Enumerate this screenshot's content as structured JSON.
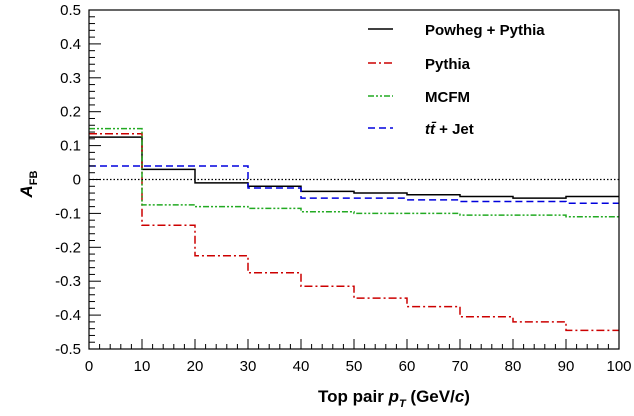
{
  "chart_data": {
    "type": "line",
    "step": true,
    "xlabel": {
      "main": "Top pair ",
      "var": "p",
      "sub": "T",
      "unit_open": " (GeV/",
      "unit_var": "c",
      "unit_close": ")"
    },
    "ylabel": {
      "main": "A",
      "sub": "FB"
    },
    "xlim": [
      0,
      100
    ],
    "ylim": [
      -0.5,
      0.5
    ],
    "x_ticks": [
      "0",
      "10",
      "20",
      "30",
      "40",
      "50",
      "60",
      "70",
      "80",
      "90",
      "100"
    ],
    "y_ticks": [
      "-0.5",
      "-0.4",
      "-0.3",
      "-0.2",
      "-0.1",
      "0",
      "0.1",
      "0.2",
      "0.3",
      "0.4",
      "0.5"
    ],
    "bin_edges": [
      0,
      10,
      20,
      30,
      40,
      50,
      60,
      70,
      80,
      90,
      100
    ],
    "reference_line": {
      "y": 0,
      "style": "dotted",
      "color": "#000000"
    },
    "legend_position": "top-right",
    "series": [
      {
        "name": "Powheg + Pythia",
        "color": "#000000",
        "dash": "",
        "values": [
          0.125,
          0.03,
          -0.01,
          -0.02,
          -0.035,
          -0.04,
          -0.045,
          -0.05,
          -0.055,
          -0.05
        ]
      },
      {
        "name": "Pythia",
        "color": "#cc0000",
        "dash": "8,3,2,3",
        "values": [
          0.135,
          -0.135,
          -0.225,
          -0.275,
          -0.315,
          -0.35,
          -0.375,
          -0.405,
          -0.42,
          -0.445
        ]
      },
      {
        "name": "MCFM",
        "color": "#22aa22",
        "dash": "6,2,2,2,2,2",
        "values": [
          0.15,
          -0.075,
          -0.08,
          -0.085,
          -0.095,
          -0.1,
          -0.1,
          -0.105,
          -0.105,
          -0.11
        ]
      },
      {
        "name_parts": [
          "t",
          "t̄",
          " + Jet"
        ],
        "name_text": "tt̄ + Jet",
        "color": "#0000dd",
        "dash": "7,4",
        "values": [
          0.04,
          0.04,
          0.04,
          -0.025,
          -0.055,
          -0.055,
          -0.06,
          -0.065,
          -0.065,
          -0.07
        ]
      }
    ]
  }
}
